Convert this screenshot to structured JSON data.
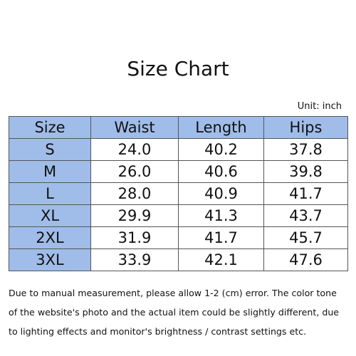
{
  "title": "Size Chart",
  "unit": "Unit: inch",
  "table": {
    "header": [
      "Size",
      "Waist",
      "Length",
      "Hips"
    ],
    "rows": [
      [
        "S",
        "24.0",
        "40.2",
        "37.8"
      ],
      [
        "M",
        "26.0",
        "40.6",
        "39.8"
      ],
      [
        "L",
        "28.0",
        "40.9",
        "41.7"
      ],
      [
        "XL",
        "29.9",
        "41.3",
        "43.7"
      ],
      [
        "2XL",
        "31.9",
        "41.7",
        "45.7"
      ],
      [
        "3XL",
        "33.9",
        "42.1",
        "47.6"
      ]
    ]
  },
  "note": {
    "lines": [
      "Due to manual measurement, please allow 1-2 (cm) error. The color tone",
      "of the website's photo and the actual item could be slightly different, due",
      "to lighting effects and monitor's brightness / contrast settings etc."
    ]
  }
}
